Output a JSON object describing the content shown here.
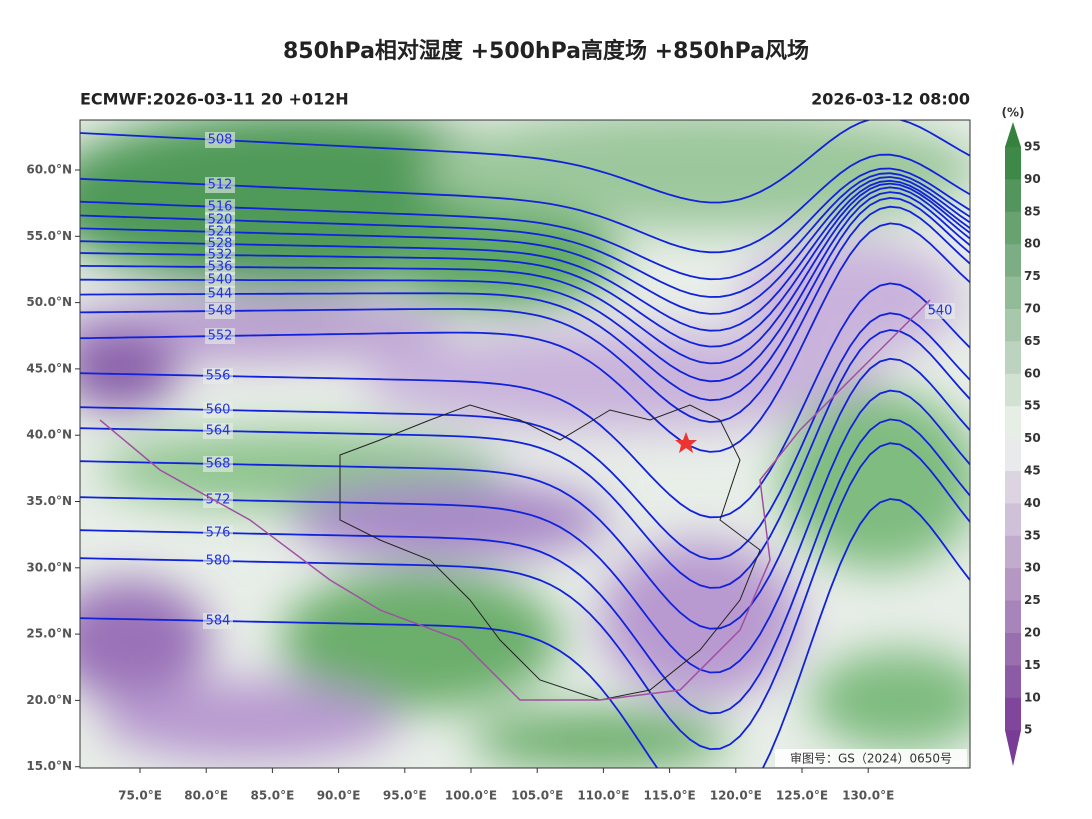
{
  "title": "850hPa相对湿度 +500hPa高度场 +850hPa风场",
  "header": {
    "left": "ECMWF:2026-03-11 20 +012H",
    "right": "2026-03-12 08:00"
  },
  "axes": {
    "lat_labels": [
      "60.0°N",
      "55.0°N",
      "50.0°N",
      "45.0°N",
      "40.0°N",
      "35.0°N",
      "30.0°N",
      "25.0°N",
      "20.0°N",
      "15.0°N"
    ],
    "lon_labels": [
      "75.0°E",
      "80.0°E",
      "85.0°E",
      "90.0°E",
      "95.0°E",
      "100.0°E",
      "105.0°E",
      "110.0°E",
      "115.0°E",
      "120.0°E",
      "125.0°E",
      "130.0°E"
    ]
  },
  "colorbar": {
    "unit": "(%)",
    "labels": [
      "95",
      "90",
      "85",
      "80",
      "75",
      "70",
      "65",
      "60",
      "55",
      "50",
      "45",
      "40",
      "35",
      "30",
      "25",
      "20",
      "15",
      "10",
      "5"
    ]
  },
  "contours": [
    {
      "label": "508"
    },
    {
      "label": "512"
    },
    {
      "label": "516"
    },
    {
      "label": "520"
    },
    {
      "label": "524"
    },
    {
      "label": "528"
    },
    {
      "label": "532"
    },
    {
      "label": "536"
    },
    {
      "label": "540"
    },
    {
      "label": "544"
    },
    {
      "label": "548"
    },
    {
      "label": "552"
    },
    {
      "label": "556"
    },
    {
      "label": "560"
    },
    {
      "label": "564"
    },
    {
      "label": "568"
    },
    {
      "label": "572"
    },
    {
      "label": "576"
    },
    {
      "label": "580"
    },
    {
      "label": "584"
    },
    {
      "label": "540"
    }
  ],
  "footer": "审图号：GS（2024）0650号"
}
